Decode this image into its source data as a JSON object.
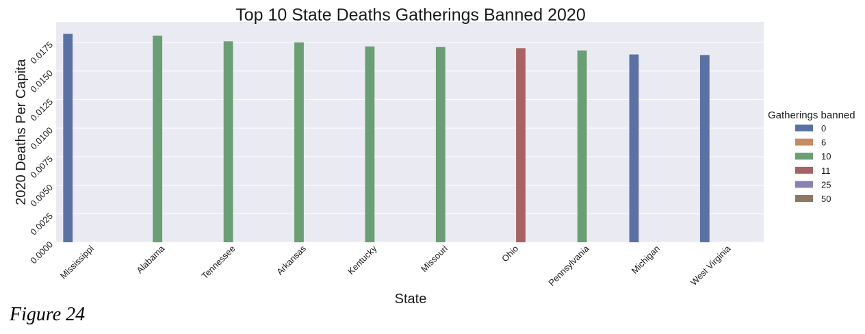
{
  "caption": "Figure 24",
  "chart_data": {
    "type": "bar",
    "title": "Top 10 State Deaths Gatherings Banned 2020",
    "xlabel": "State",
    "ylabel": "2020 Deaths Per Capita",
    "ylim": [
      0,
      0.0193
    ],
    "yticks": [
      "0.0000",
      "0.0025",
      "0.0050",
      "0.0075",
      "0.0100",
      "0.0125",
      "0.0150",
      "0.0175"
    ],
    "grid": true,
    "categories": [
      "Mississippi",
      "Alabama",
      "Tennessee",
      "Arkansas",
      "Kentucky",
      "Missouri",
      "Ohio",
      "Pennsylvania",
      "Michigan",
      "West Virginia"
    ],
    "hue_order": [
      "0",
      "6",
      "10",
      "11",
      "25",
      "50"
    ],
    "legend": {
      "title": "Gatherings banned",
      "placement": "right",
      "entries": [
        {
          "label": "0",
          "color": "#5a71a6"
        },
        {
          "label": "6",
          "color": "#c78b62"
        },
        {
          "label": "10",
          "color": "#6a9e73"
        },
        {
          "label": "11",
          "color": "#a86263"
        },
        {
          "label": "25",
          "color": "#8b80b3"
        },
        {
          "label": "50",
          "color": "#8c7863"
        }
      ]
    },
    "bars": [
      {
        "state": "Mississippi",
        "group": "0",
        "value": 0.01825
      },
      {
        "state": "Alabama",
        "group": "10",
        "value": 0.0181
      },
      {
        "state": "Tennessee",
        "group": "10",
        "value": 0.0176
      },
      {
        "state": "Arkansas",
        "group": "10",
        "value": 0.0175
      },
      {
        "state": "Kentucky",
        "group": "10",
        "value": 0.01715
      },
      {
        "state": "Missouri",
        "group": "10",
        "value": 0.0171
      },
      {
        "state": "Ohio",
        "group": "11",
        "value": 0.017
      },
      {
        "state": "Pennsylvania",
        "group": "10",
        "value": 0.0168
      },
      {
        "state": "Michigan",
        "group": "0",
        "value": 0.01645
      },
      {
        "state": "West Virginia",
        "group": "0",
        "value": 0.0164
      }
    ]
  }
}
